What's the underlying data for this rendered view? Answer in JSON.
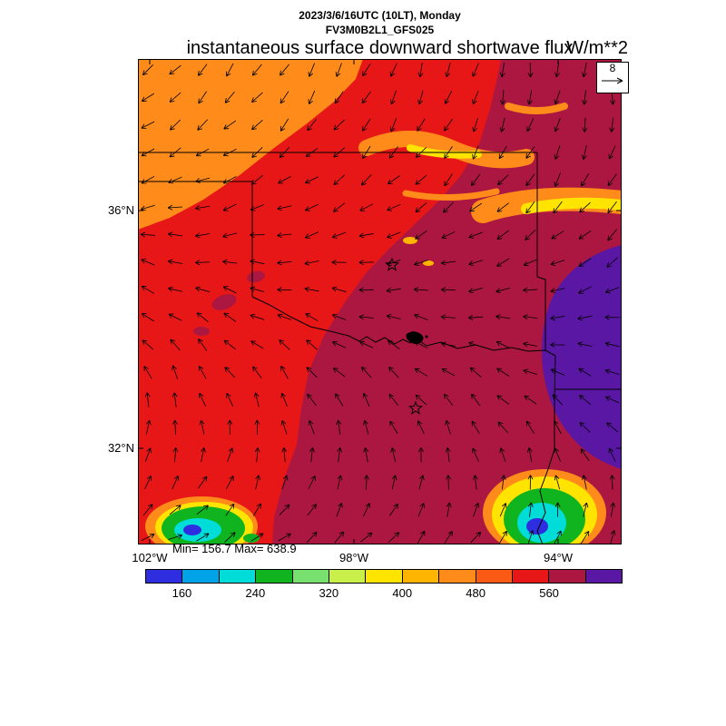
{
  "header": {
    "valid_time": "2023/3/6/16UTC (10LT), Monday",
    "model": "FV3M0B2L1_GFS025",
    "title": "instantaneous surface downward shortwave flux",
    "units": "W/m**2"
  },
  "map": {
    "lat_labels": [
      "36°N",
      "32°N"
    ],
    "lon_labels": [
      "102°W",
      "98°W",
      "94°W"
    ],
    "stats_label": "Min= 156.7 Max= 638.9",
    "wind_reference_label": "8"
  },
  "chart_data": {
    "type": "heatmap",
    "title": "instantaneous surface downward shortwave flux",
    "units": "W/m**2",
    "valid_time": "2023/3/6/16UTC (10LT), Monday",
    "model": "FV3M0B2L1_GFS025",
    "field_min": 156.7,
    "field_max": 638.9,
    "wind_reference": 8,
    "overlay": "wind vector arrows on regular grid",
    "region": "Southern Plains (Texas / Oklahoma), approx 102W-93W, 30N-38.5N",
    "y_axis": {
      "tick_labels": [
        "36°N",
        "32°N"
      ]
    },
    "x_axis": {
      "tick_labels": [
        "102°W",
        "98°W",
        "94°W"
      ]
    },
    "grid": false,
    "legend_position": "bottom",
    "colorbar": {
      "orientation": "horizontal",
      "boundaries": [
        120,
        160,
        200,
        240,
        280,
        320,
        360,
        400,
        440,
        480,
        520,
        560,
        600,
        640
      ],
      "colors": [
        "#2e2ee0",
        "#00a2e8",
        "#00dcd8",
        "#0fb41e",
        "#77e06e",
        "#c8ef4a",
        "#ffe400",
        "#ffb400",
        "#ff8c1a",
        "#fa5a14",
        "#e81717",
        "#ab1740",
        "#5a17a3"
      ],
      "tick_labels": [
        "160",
        "240",
        "320",
        "400",
        "480",
        "560"
      ]
    }
  }
}
